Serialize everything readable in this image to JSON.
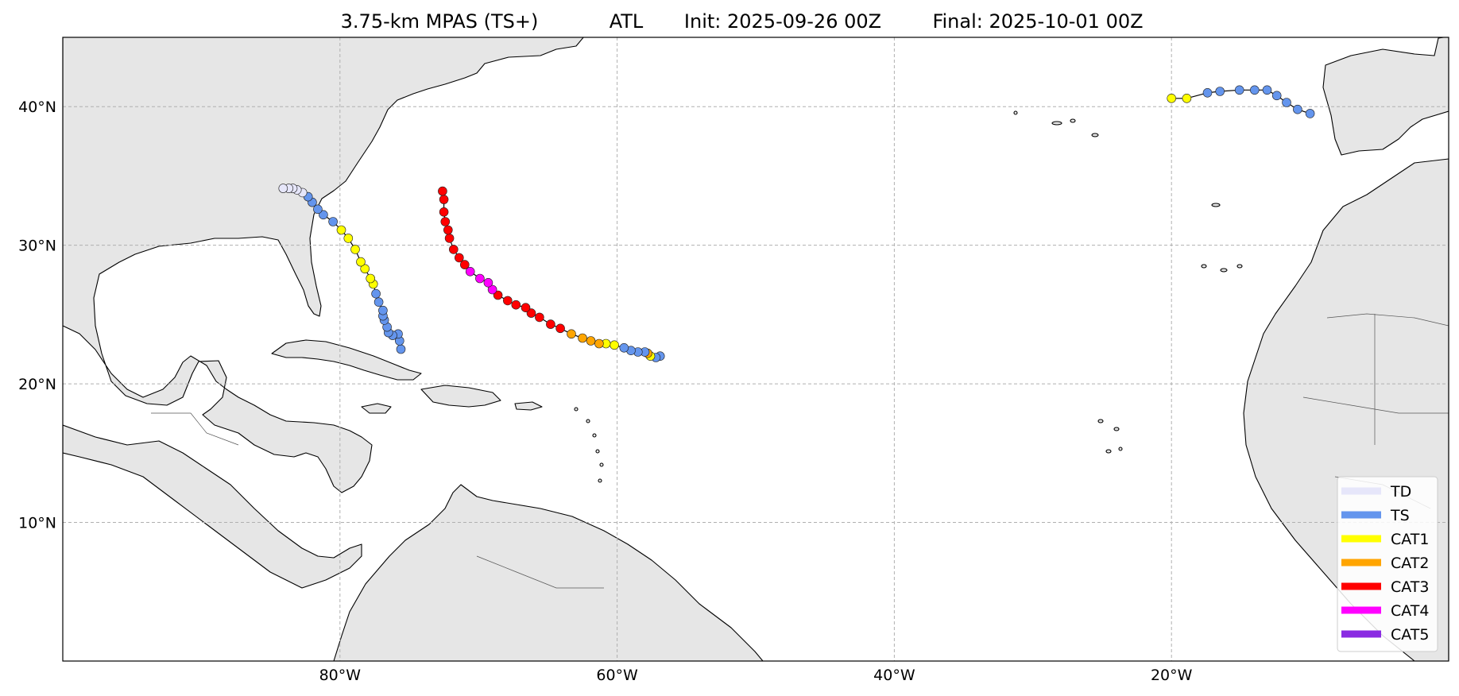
{
  "title": {
    "model": "3.75-km MPAS (TS+)",
    "basin": "ATL",
    "init": "Init: 2025-09-26 00Z",
    "final": "Final: 2025-10-01 00Z"
  },
  "map": {
    "lon_range": [
      -100,
      0
    ],
    "lat_range": [
      0,
      45
    ],
    "lon_ticks": [
      {
        "value": -80,
        "label": "80°W"
      },
      {
        "value": -60,
        "label": "60°W"
      },
      {
        "value": -40,
        "label": "40°W"
      },
      {
        "value": -20,
        "label": "20°W"
      }
    ],
    "lat_ticks": [
      {
        "value": 40,
        "label": "40°N"
      },
      {
        "value": 30,
        "label": "30°N"
      },
      {
        "value": 20,
        "label": "20°N"
      },
      {
        "value": 10,
        "label": "10°N"
      }
    ],
    "grid": true,
    "land_color": "#e6e6e6"
  },
  "legend": {
    "placement": "bottom-right",
    "items": [
      {
        "label": "TD",
        "color": "#e6e6fa"
      },
      {
        "label": "TS",
        "color": "#6495ed"
      },
      {
        "label": "CAT1",
        "color": "#ffff00"
      },
      {
        "label": "CAT2",
        "color": "#ffa500"
      },
      {
        "label": "CAT3",
        "color": "#ff0000"
      },
      {
        "label": "CAT4",
        "color": "#ff00ff"
      },
      {
        "label": "CAT5",
        "color": "#8a2be2"
      }
    ]
  },
  "chart_data": {
    "type": "scatter",
    "tracks": [
      {
        "points": [
          {
            "lon": -75.6,
            "lat": 22.5,
            "cat": "TS"
          },
          {
            "lon": -75.7,
            "lat": 23.1,
            "cat": "TS"
          },
          {
            "lon": -75.8,
            "lat": 23.6,
            "cat": "TS"
          },
          {
            "lon": -76.2,
            "lat": 23.5,
            "cat": "TS"
          },
          {
            "lon": -76.5,
            "lat": 23.7,
            "cat": "TS"
          },
          {
            "lon": -76.6,
            "lat": 24.1,
            "cat": "TS"
          },
          {
            "lon": -76.8,
            "lat": 24.6,
            "cat": "TS"
          },
          {
            "lon": -76.9,
            "lat": 24.9,
            "cat": "TS"
          },
          {
            "lon": -76.9,
            "lat": 25.3,
            "cat": "TS"
          },
          {
            "lon": -77.2,
            "lat": 25.9,
            "cat": "TS"
          },
          {
            "lon": -77.4,
            "lat": 26.5,
            "cat": "TS"
          },
          {
            "lon": -77.6,
            "lat": 27.2,
            "cat": "CAT1"
          },
          {
            "lon": -77.8,
            "lat": 27.6,
            "cat": "CAT1"
          },
          {
            "lon": -78.2,
            "lat": 28.3,
            "cat": "CAT1"
          },
          {
            "lon": -78.5,
            "lat": 28.8,
            "cat": "CAT1"
          },
          {
            "lon": -78.9,
            "lat": 29.7,
            "cat": "CAT1"
          },
          {
            "lon": -79.4,
            "lat": 30.5,
            "cat": "CAT1"
          },
          {
            "lon": -79.9,
            "lat": 31.1,
            "cat": "CAT1"
          },
          {
            "lon": -80.5,
            "lat": 31.7,
            "cat": "TS"
          },
          {
            "lon": -81.2,
            "lat": 32.2,
            "cat": "TS"
          },
          {
            "lon": -81.6,
            "lat": 32.6,
            "cat": "TS"
          },
          {
            "lon": -82.0,
            "lat": 33.1,
            "cat": "TS"
          },
          {
            "lon": -82.3,
            "lat": 33.5,
            "cat": "TS"
          },
          {
            "lon": -82.7,
            "lat": 33.8,
            "cat": "TD"
          },
          {
            "lon": -83.1,
            "lat": 34.0,
            "cat": "TD"
          },
          {
            "lon": -83.4,
            "lat": 34.1,
            "cat": "TD"
          },
          {
            "lon": -83.7,
            "lat": 34.1,
            "cat": "TD"
          },
          {
            "lon": -84.1,
            "lat": 34.1,
            "cat": "TD"
          }
        ]
      },
      {
        "points": [
          {
            "lon": -56.9,
            "lat": 22.0,
            "cat": "TS"
          },
          {
            "lon": -57.2,
            "lat": 21.9,
            "cat": "TS"
          },
          {
            "lon": -57.6,
            "lat": 22.0,
            "cat": "CAT1"
          },
          {
            "lon": -57.8,
            "lat": 22.2,
            "cat": "CAT2"
          },
          {
            "lon": -58.0,
            "lat": 22.3,
            "cat": "TS"
          },
          {
            "lon": -58.5,
            "lat": 22.3,
            "cat": "TS"
          },
          {
            "lon": -59.0,
            "lat": 22.4,
            "cat": "TS"
          },
          {
            "lon": -59.5,
            "lat": 22.6,
            "cat": "TS"
          },
          {
            "lon": -60.2,
            "lat": 22.8,
            "cat": "CAT1"
          },
          {
            "lon": -60.8,
            "lat": 22.9,
            "cat": "CAT1"
          },
          {
            "lon": -61.3,
            "lat": 22.9,
            "cat": "CAT2"
          },
          {
            "lon": -61.9,
            "lat": 23.1,
            "cat": "CAT2"
          },
          {
            "lon": -62.5,
            "lat": 23.3,
            "cat": "CAT2"
          },
          {
            "lon": -63.3,
            "lat": 23.6,
            "cat": "CAT2"
          },
          {
            "lon": -64.1,
            "lat": 24.0,
            "cat": "CAT3"
          },
          {
            "lon": -64.8,
            "lat": 24.3,
            "cat": "CAT3"
          },
          {
            "lon": -65.6,
            "lat": 24.8,
            "cat": "CAT3"
          },
          {
            "lon": -66.2,
            "lat": 25.1,
            "cat": "CAT3"
          },
          {
            "lon": -66.6,
            "lat": 25.5,
            "cat": "CAT3"
          },
          {
            "lon": -67.3,
            "lat": 25.7,
            "cat": "CAT3"
          },
          {
            "lon": -67.9,
            "lat": 26.0,
            "cat": "CAT3"
          },
          {
            "lon": -68.6,
            "lat": 26.4,
            "cat": "CAT3"
          },
          {
            "lon": -69.0,
            "lat": 26.8,
            "cat": "CAT4"
          },
          {
            "lon": -69.3,
            "lat": 27.3,
            "cat": "CAT4"
          },
          {
            "lon": -69.9,
            "lat": 27.6,
            "cat": "CAT4"
          },
          {
            "lon": -70.6,
            "lat": 28.1,
            "cat": "CAT4"
          },
          {
            "lon": -71.0,
            "lat": 28.6,
            "cat": "CAT3"
          },
          {
            "lon": -71.4,
            "lat": 29.1,
            "cat": "CAT3"
          },
          {
            "lon": -71.8,
            "lat": 29.7,
            "cat": "CAT3"
          },
          {
            "lon": -72.1,
            "lat": 30.5,
            "cat": "CAT3"
          },
          {
            "lon": -72.2,
            "lat": 31.1,
            "cat": "CAT3"
          },
          {
            "lon": -72.4,
            "lat": 31.7,
            "cat": "CAT3"
          },
          {
            "lon": -72.5,
            "lat": 32.4,
            "cat": "CAT3"
          },
          {
            "lon": -72.5,
            "lat": 33.3,
            "cat": "CAT3"
          },
          {
            "lon": -72.6,
            "lat": 33.9,
            "cat": "CAT3"
          }
        ]
      },
      {
        "points": [
          {
            "lon": -20.0,
            "lat": 40.6,
            "cat": "CAT1"
          },
          {
            "lon": -18.9,
            "lat": 40.6,
            "cat": "CAT1"
          },
          {
            "lon": -17.4,
            "lat": 41.0,
            "cat": "TS"
          },
          {
            "lon": -16.5,
            "lat": 41.1,
            "cat": "TS"
          },
          {
            "lon": -15.1,
            "lat": 41.2,
            "cat": "TS"
          },
          {
            "lon": -14.0,
            "lat": 41.2,
            "cat": "TS"
          },
          {
            "lon": -13.1,
            "lat": 41.2,
            "cat": "TS"
          },
          {
            "lon": -12.4,
            "lat": 40.8,
            "cat": "TS"
          },
          {
            "lon": -11.7,
            "lat": 40.3,
            "cat": "TS"
          },
          {
            "lon": -10.9,
            "lat": 39.8,
            "cat": "TS"
          },
          {
            "lon": -10.0,
            "lat": 39.5,
            "cat": "TS"
          }
        ]
      }
    ]
  }
}
